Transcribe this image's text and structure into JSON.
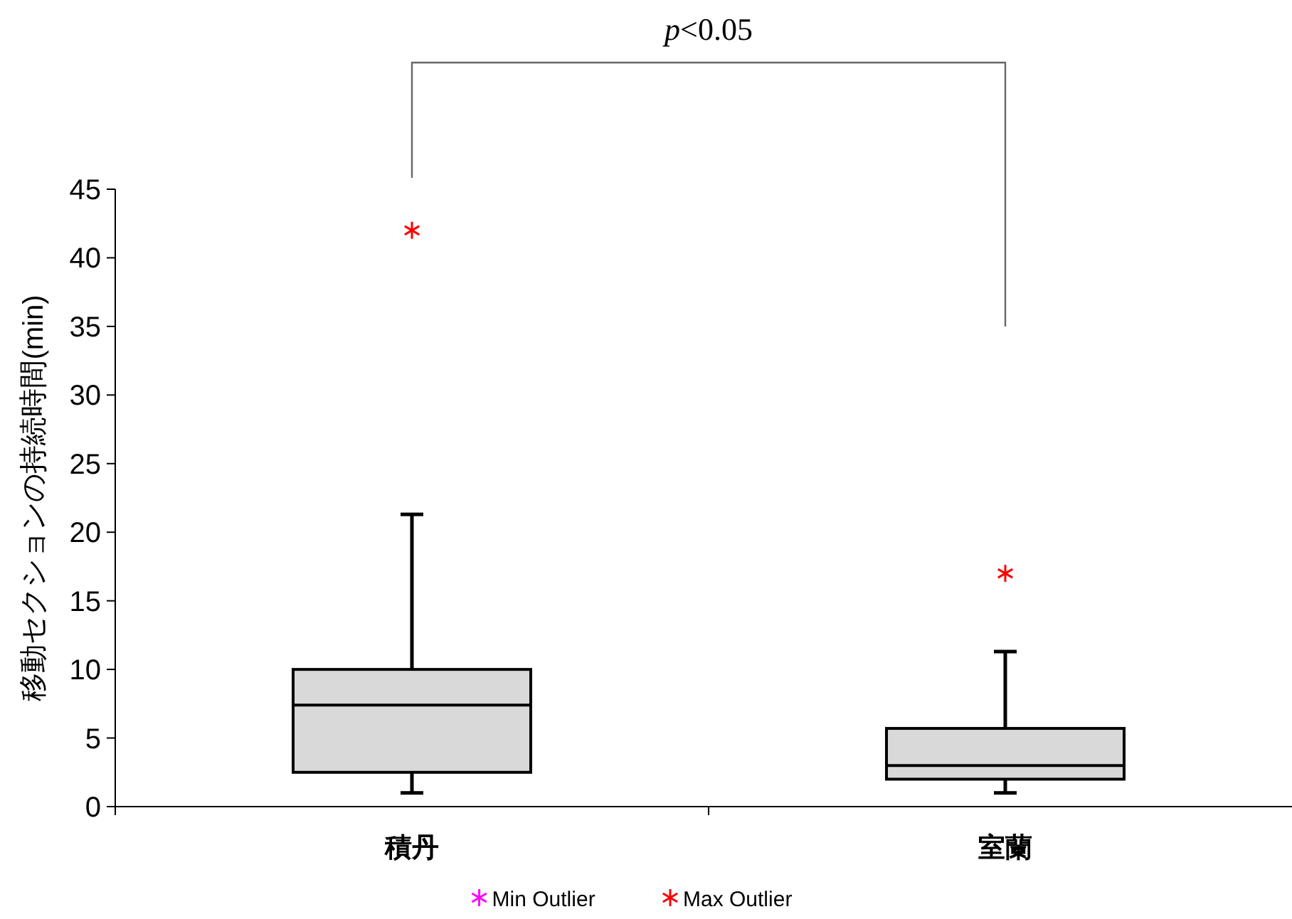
{
  "chart_data": {
    "type": "box",
    "ylabel": "移動セクションの持続時間(min)",
    "categories": [
      "積丹",
      "室蘭"
    ],
    "boxes": [
      {
        "low": 1.0,
        "q1": 2.5,
        "median": 7.4,
        "q3": 10.0,
        "high": 21.3
      },
      {
        "low": 1.0,
        "q1": 2.0,
        "median": 3.0,
        "q3": 5.7,
        "high": 11.3
      }
    ],
    "series": [
      {
        "name": "Min Outlier",
        "type": "scatter",
        "color": "#ff00ff",
        "values": [
          null,
          null
        ]
      },
      {
        "name": "Max Outlier",
        "type": "scatter",
        "color": "#ff0000",
        "x": [
          "積丹",
          "室蘭"
        ],
        "values": [
          42,
          17
        ]
      }
    ],
    "annotations": [
      "*p*<0.05"
    ],
    "ylim": [
      0,
      45
    ],
    "yticks": [
      0,
      5,
      10,
      15,
      20,
      25,
      30,
      35,
      40,
      45
    ],
    "legend": "bottom",
    "marker": "cross",
    "grid": false
  }
}
